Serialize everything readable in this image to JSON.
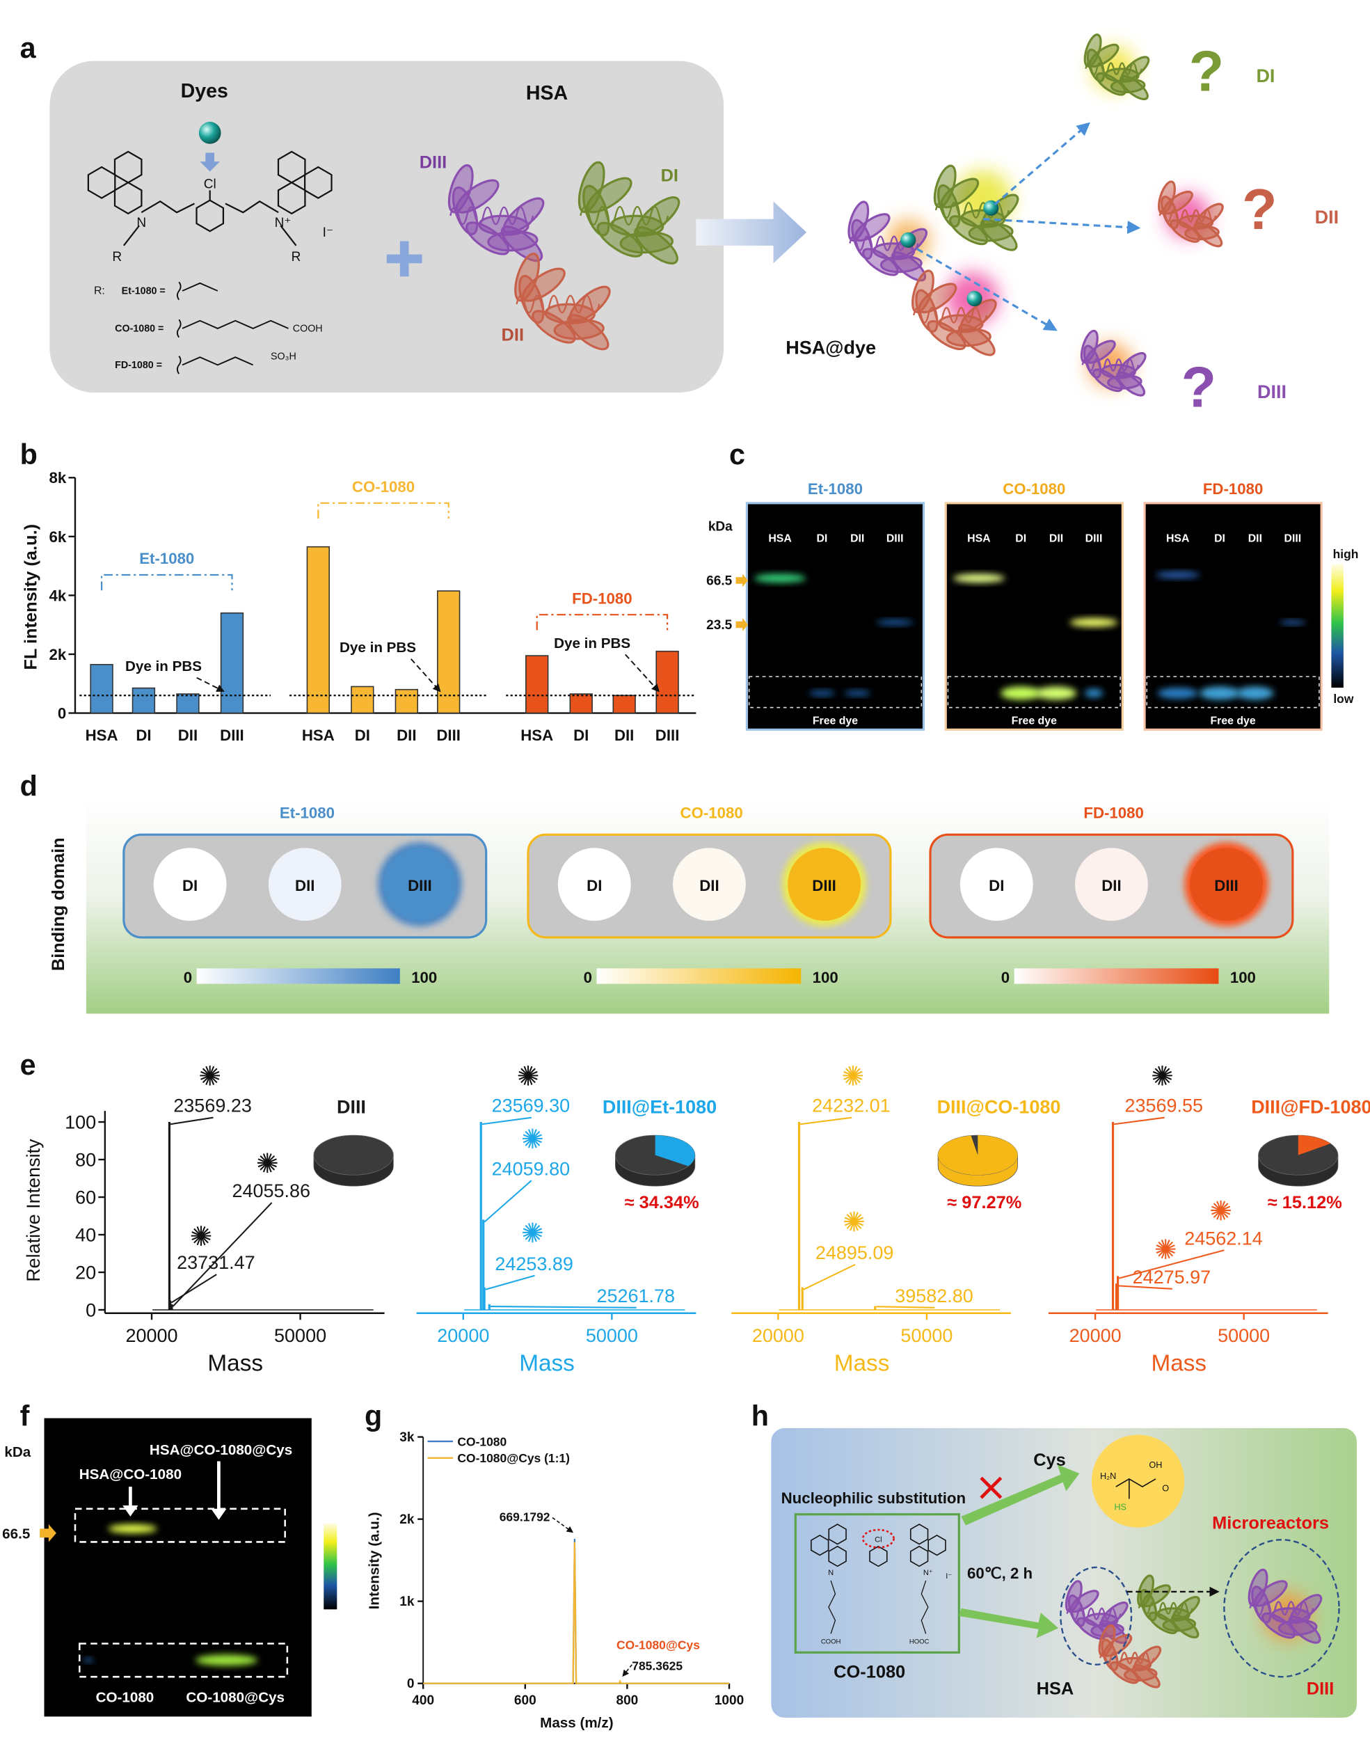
{
  "panel_labels": [
    "a",
    "b",
    "c",
    "d",
    "e",
    "f",
    "g",
    "h"
  ],
  "panel_a": {
    "dyes_title": "Dyes",
    "hsa_title": "HSA",
    "hsa_domains": [
      "DIII",
      "DI",
      "DII"
    ],
    "atoms": {
      "cl": "Cl",
      "n_left": "N",
      "r_left": "R",
      "n_right": "N⁺",
      "r_right": "R",
      "counter_ion": "I⁻"
    },
    "r_label": "R:",
    "substituents": [
      {
        "name": "Et-1080 ="
      },
      {
        "name": "CO-1080 =",
        "end": "COOH"
      },
      {
        "name": "FD-1080 =",
        "end": "SO₃H"
      }
    ],
    "complex_label": "HSA@dye",
    "outcomes": [
      {
        "domain": "DI",
        "mark": "?"
      },
      {
        "domain": "DII",
        "mark": "?"
      },
      {
        "domain": "DIII",
        "mark": "?"
      }
    ]
  },
  "chart_data": [
    {
      "type": "bar",
      "y_label": "FL intensity (a.u.)",
      "ylim": [
        0,
        8000
      ],
      "yticks": [
        0,
        {
          "value": 2000,
          "label": "2k"
        },
        {
          "value": 4000,
          "label": "4k"
        },
        {
          "value": 6000,
          "label": "6k"
        },
        {
          "value": 8000,
          "label": "8k"
        }
      ],
      "groups": [
        {
          "name": "Et-1080",
          "color": "#4a8fca",
          "categories": [
            "HSA",
            "DI",
            "DII",
            "DIII"
          ],
          "values": [
            1650,
            850,
            650,
            3400
          ]
        },
        {
          "name": "CO-1080",
          "color": "#f7b733",
          "categories": [
            "HSA",
            "DI",
            "DII",
            "DIII"
          ],
          "values": [
            5650,
            900,
            800,
            4150
          ]
        },
        {
          "name": "FD-1080",
          "color": "#e8531c",
          "categories": [
            "HSA",
            "DI",
            "DII",
            "DIII"
          ],
          "values": [
            1950,
            650,
            600,
            2100
          ]
        }
      ],
      "reference": {
        "value": 600,
        "label": "Dye in PBS"
      }
    },
    {
      "type": "spectrum",
      "title": "DIII",
      "color": "#1a1a1a",
      "x_label": "Mass",
      "y_label": "Relative Intensity",
      "xlim": [
        9000,
        67000
      ],
      "xticks": [
        20000,
        50000
      ],
      "ylim": [
        0,
        100
      ],
      "yticks": [
        0,
        20,
        40,
        60,
        80,
        100
      ],
      "peaks": {
        "x": [
          23569.23,
          23731.47,
          24055.86
        ],
        "labels": [
          "23569.23",
          "23731.47",
          "24055.86"
        ],
        "values": [
          100,
          5,
          3
        ]
      }
    },
    {
      "type": "spectrum",
      "title": "DIII@Et-1080",
      "color": "#1da7e8",
      "x_label": "Mass",
      "xlim": [
        9000,
        67000
      ],
      "xticks": [
        20000,
        50000
      ],
      "ylim": [
        0,
        100
      ],
      "peaks": {
        "x": [
          23569.3,
          24059.8,
          24253.89,
          25261.78
        ],
        "labels": [
          "23569.30",
          "24059.80",
          "24253.89",
          "25261.78"
        ],
        "values": [
          100,
          48,
          12,
          3
        ]
      },
      "pie": {
        "value": 34.34,
        "label": "≈ 34.34%"
      }
    },
    {
      "type": "spectrum",
      "title": "DIII@CO-1080",
      "color": "#f6b817",
      "x_label": "Mass",
      "xlim": [
        9000,
        67000
      ],
      "xticks": [
        20000,
        50000
      ],
      "ylim": [
        0,
        100
      ],
      "peaks": {
        "x": [
          24232.01,
          24895.09,
          39582.8
        ],
        "labels": [
          "24232.01",
          "24895.09",
          "39582.80"
        ],
        "values": [
          100,
          12,
          2
        ]
      },
      "pie": {
        "value": 97.27,
        "label": "≈ 97.27%"
      }
    },
    {
      "type": "spectrum",
      "title": "DIII@FD-1080",
      "color": "#ee5a1c",
      "x_label": "Mass",
      "xlim": [
        9000,
        67000
      ],
      "xticks": [
        20000,
        50000
      ],
      "ylim": [
        0,
        100
      ],
      "peaks": {
        "x": [
          23569.55,
          24562.14,
          24275.97
        ],
        "labels": [
          "23569.55",
          "24562.14",
          "24275.97"
        ],
        "values": [
          100,
          18,
          14
        ]
      },
      "pie": {
        "value": 15.12,
        "label": "≈ 15.12%"
      }
    },
    {
      "type": "line",
      "x_label": "Mass (m/z)",
      "y_label": "Intensity (a.u.)",
      "xlim": [
        400,
        1000
      ],
      "ylim": [
        0,
        3000
      ],
      "xticks": [
        400,
        600,
        800,
        1000
      ],
      "yticks": [
        0,
        {
          "value": 1000,
          "label": "1k"
        },
        {
          "value": 2000,
          "label": "2k"
        },
        {
          "value": 3000,
          "label": "3k"
        }
      ],
      "series": [
        {
          "name": "CO-1080",
          "color": "#3d7fc6",
          "x": [
            400,
            694,
            697,
            700,
            1000
          ],
          "values": [
            0,
            0,
            1760,
            0,
            0
          ]
        },
        {
          "name": "CO-1080@Cys (1:1)",
          "color": "#f3b531",
          "x": [
            400,
            694,
            697,
            700,
            784,
            786,
            788,
            1000
          ],
          "values": [
            0,
            0,
            1720,
            0,
            0,
            25,
            0,
            0
          ]
        }
      ],
      "annotations": [
        "669.1792",
        "CO-1080@Cys",
        "785.3625"
      ]
    }
  ],
  "panel_c": {
    "kda": "kDa",
    "markers": [
      66.5,
      23.5
    ],
    "gels": [
      {
        "title": "Et-1080",
        "lanes": [
          "HSA",
          "DI",
          "DII",
          "DIII"
        ],
        "footer": "Free dye"
      },
      {
        "title": "CO-1080",
        "lanes": [
          "HSA",
          "DI",
          "DII",
          "DIII"
        ],
        "footer": "Free dye"
      },
      {
        "title": "FD-1080",
        "lanes": [
          "HSA",
          "DI",
          "DII",
          "DIII"
        ],
        "footer": "Free dye"
      }
    ],
    "scale": {
      "high": "high",
      "low": "low"
    }
  },
  "panel_d": {
    "y_label": "Binding domain",
    "boxes": [
      {
        "title": "Et-1080",
        "domains": [
          "DI",
          "DII",
          "DIII"
        ]
      },
      {
        "title": "CO-1080",
        "domains": [
          "DI",
          "DII",
          "DIII"
        ]
      },
      {
        "title": "FD-1080",
        "domains": [
          "DI",
          "DII",
          "DIII"
        ]
      }
    ],
    "scale": [
      0,
      100
    ]
  },
  "panel_f": {
    "kda": "kDa",
    "marker": 66.5,
    "top_labels": [
      "HSA@CO-1080@Cys",
      "HSA@CO-1080"
    ],
    "bottom_labels": [
      "CO-1080",
      "CO-1080@Cys"
    ]
  },
  "panel_h": {
    "reagent": "Cys",
    "reaction": "Nucleophilic substitution",
    "conditions": "60℃,  2 h",
    "compound": "CO-1080",
    "protein": "HSA",
    "site": "DIII",
    "product": "Microreactors",
    "cys_atoms": [
      "H₂N",
      "OH",
      "O",
      "HS"
    ],
    "compound_atoms": [
      "Cl",
      "N",
      "N⁺",
      "I⁻",
      "COOH",
      "HOOC"
    ]
  }
}
